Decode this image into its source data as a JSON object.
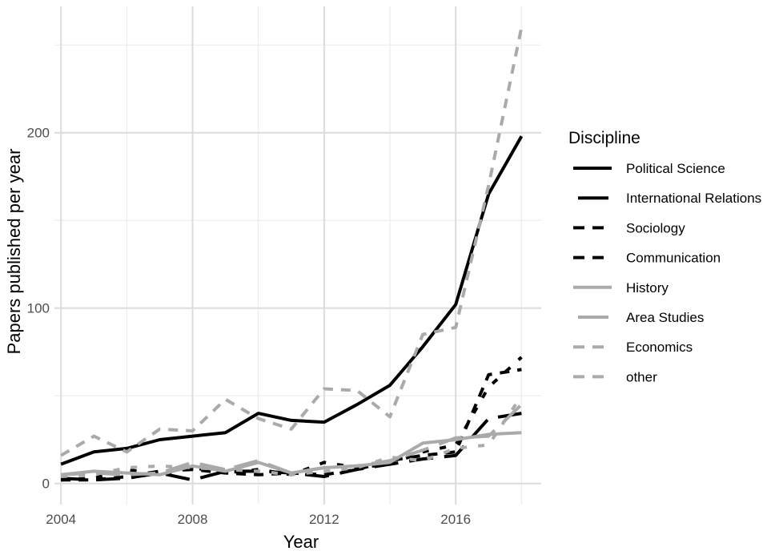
{
  "chart_data": {
    "type": "line",
    "xlabel": "Year",
    "ylabel": "Papers published per year",
    "xlim": [
      2003.8,
      2018.6
    ],
    "ylim": [
      -12,
      272
    ],
    "x_ticks": [
      2004,
      2008,
      2012,
      2016
    ],
    "x_tick_labels": [
      "2004",
      "2008",
      "2012",
      "2016"
    ],
    "y_ticks": [
      0,
      100,
      200
    ],
    "y_tick_labels": [
      "0",
      "100",
      "200"
    ],
    "grid": true,
    "legend": {
      "title": "Discipline",
      "position": "right"
    },
    "x": [
      2004,
      2005,
      2006,
      2007,
      2008,
      2009,
      2010,
      2011,
      2012,
      2013,
      2014,
      2015,
      2016,
      2017,
      2018
    ],
    "series": [
      {
        "name": "Political Science",
        "color": "#000000",
        "dash": "solid",
        "values": [
          11,
          18,
          20,
          25,
          27,
          29,
          40,
          36,
          35,
          45,
          56,
          78,
          102,
          165,
          198
        ]
      },
      {
        "name": "International Relations",
        "color": "#000000",
        "dash": "longdash",
        "values": [
          3,
          2,
          3,
          6,
          2,
          7,
          7,
          6,
          4,
          8,
          11,
          14,
          16,
          37,
          40
        ]
      },
      {
        "name": "Sociology",
        "color": "#000000",
        "dash": "dotted",
        "values": [
          2,
          3,
          8,
          5,
          9,
          6,
          8,
          5,
          12,
          9,
          11,
          18,
          22,
          55,
          72
        ]
      },
      {
        "name": "Communication",
        "color": "#000000",
        "dash": "dashed",
        "values": [
          2,
          2,
          4,
          7,
          8,
          6,
          5,
          6,
          5,
          8,
          13,
          16,
          18,
          62,
          65
        ]
      },
      {
        "name": "History",
        "color": "#aaaaaa",
        "dash": "solid",
        "values": [
          5,
          7,
          6,
          5,
          10,
          7,
          12,
          6,
          9,
          10,
          12,
          23,
          25,
          28,
          29
        ]
      },
      {
        "name": "Area Studies",
        "color": "#aaaaaa",
        "dash": "longdash",
        "values": [
          5,
          6,
          5,
          6,
          12,
          8,
          13,
          6,
          9,
          10,
          13,
          19,
          26,
          27,
          45
        ]
      },
      {
        "name": "Economics",
        "color": "#aaaaaa",
        "dash": "dotted",
        "values": [
          4,
          5,
          9,
          10,
          9,
          8,
          7,
          5,
          7,
          9,
          15,
          13,
          20,
          22,
          50
        ]
      },
      {
        "name": "other",
        "color": "#aaaaaa",
        "dash": "dashed",
        "values": [
          16,
          27,
          18,
          31,
          30,
          48,
          37,
          31,
          54,
          53,
          38,
          85,
          89,
          170,
          260
        ]
      }
    ]
  }
}
